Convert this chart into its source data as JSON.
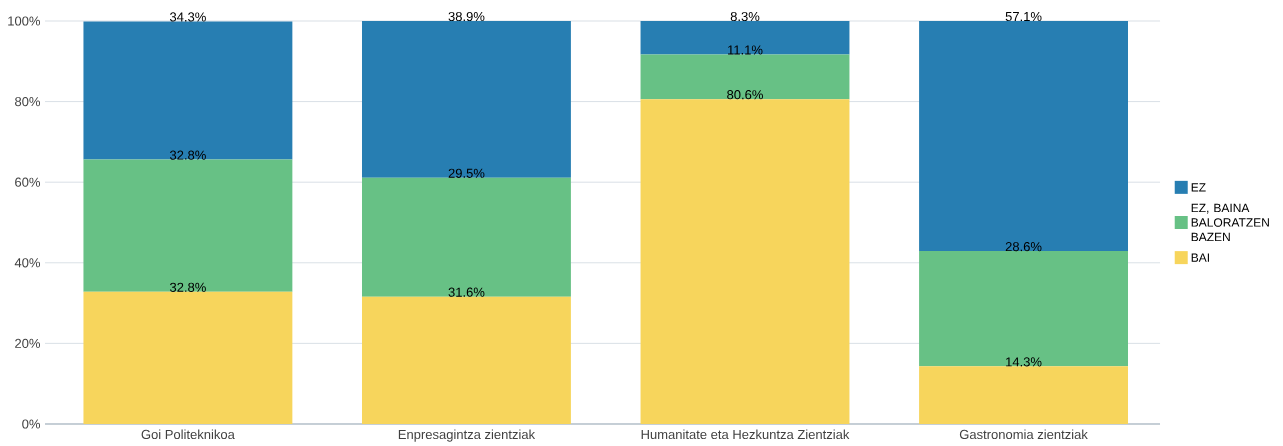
{
  "chart_data": {
    "type": "bar",
    "stacked": true,
    "categories": [
      "Goi Politeknikoa",
      "Enpresagintza zientziak",
      "Humanitate eta Hezkuntza Zientziak",
      "Gastronomia zientziak"
    ],
    "series": [
      {
        "name": "BAI",
        "color": "#f7d55c",
        "values": [
          32.8,
          31.6,
          80.6,
          14.3
        ],
        "value_labels": [
          "32.8%",
          "31.6%",
          "80.6%",
          "14.3%"
        ]
      },
      {
        "name": "EZ, BAINA BALORATZEN BAZEN",
        "color": "#67c185",
        "values": [
          32.8,
          29.5,
          11.1,
          28.6
        ],
        "value_labels": [
          "32.8%",
          "29.5%",
          "11.1%",
          "28.6%"
        ]
      },
      {
        "name": "EZ",
        "color": "#277eb2",
        "values": [
          34.3,
          38.9,
          8.3,
          57.1
        ],
        "value_labels": [
          "34.3%",
          "38.9%",
          "8.3%",
          "57.1%"
        ]
      }
    ],
    "ylim": [
      0,
      100
    ],
    "yticks": [
      {
        "value": 0,
        "label": "0%"
      },
      {
        "value": 20,
        "label": "20%"
      },
      {
        "value": 40,
        "label": "40%"
      },
      {
        "value": 60,
        "label": "60%"
      },
      {
        "value": 80,
        "label": "80%"
      },
      {
        "value": 100,
        "label": "100%"
      }
    ],
    "grid": "y",
    "legend": "right"
  }
}
